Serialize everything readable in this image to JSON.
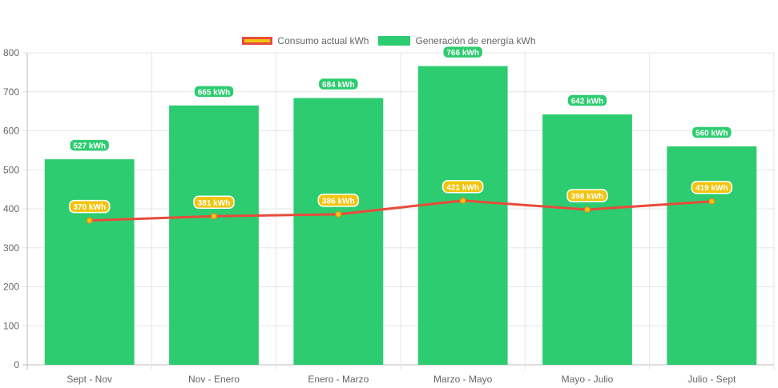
{
  "chart_data": {
    "type": "bar",
    "categories": [
      "Sept - Nov",
      "Nov - Enero",
      "Enero - Marzo",
      "Marzo - Mayo",
      "Mayo - Julio",
      "Julio - Sept"
    ],
    "ylim": [
      0,
      800
    ],
    "yticks": [
      0,
      100,
      200,
      300,
      400,
      500,
      600,
      700,
      800
    ],
    "grid": true,
    "legend_position": "top-center",
    "unit_suffix": " kWh",
    "series": [
      {
        "name": "Consumo actual kWh",
        "type": "line",
        "values": [
          370,
          381,
          386,
          421,
          398,
          419
        ],
        "color": "#e74c3c",
        "point_color": "#f1c40f"
      },
      {
        "name": "Generación de energía kWh",
        "type": "bar",
        "values": [
          527,
          665,
          684,
          766,
          642,
          560
        ],
        "color": "#2ecc71"
      }
    ]
  }
}
